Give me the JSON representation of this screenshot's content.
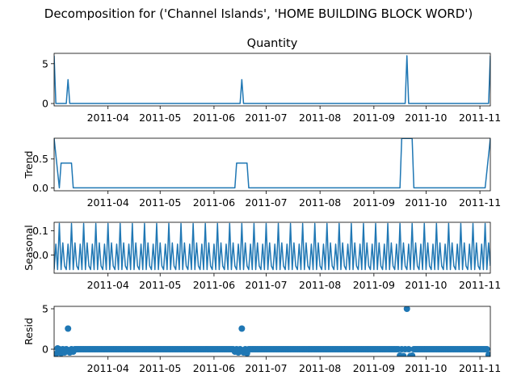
{
  "figure": {
    "suptitle": "Decomposition for ('Channel Islands', 'HOME BUILDING BLOCK WORD')"
  },
  "colors": {
    "series": "#1f77b4",
    "axis": "#000000",
    "background": "#ffffff"
  },
  "x_axis": {
    "type": "date",
    "range": [
      "2011-03-01",
      "2011-11-07"
    ],
    "ticks": [
      {
        "date": "2011-04-01",
        "label": "2011-04"
      },
      {
        "date": "2011-05-01",
        "label": "2011-05"
      },
      {
        "date": "2011-06-01",
        "label": "2011-06"
      },
      {
        "date": "2011-07-01",
        "label": "2011-07"
      },
      {
        "date": "2011-08-01",
        "label": "2011-08"
      },
      {
        "date": "2011-09-01",
        "label": "2011-09"
      },
      {
        "date": "2011-10-01",
        "label": "2011-10"
      },
      {
        "date": "2011-11-01",
        "label": "2011-11"
      }
    ]
  },
  "chart_data": [
    {
      "type": "line",
      "title": "Quantity",
      "ylabel": "",
      "ylim": [
        -0.3,
        6.3
      ],
      "yticks": [
        {
          "value": 0,
          "label": "0"
        },
        {
          "value": 5,
          "label": "5"
        }
      ],
      "sampling": {
        "start": "2011-03-01",
        "end": "2011-11-07",
        "step_days": 1,
        "baseline": 0
      },
      "points": [
        {
          "x": "2011-03-01",
          "y": 6
        },
        {
          "x": "2011-03-09",
          "y": 3
        },
        {
          "x": "2011-06-17",
          "y": 3
        },
        {
          "x": "2011-09-20",
          "y": 6
        },
        {
          "x": "2011-11-07",
          "y": 6
        }
      ]
    },
    {
      "type": "line",
      "title": "",
      "ylabel": "Trend",
      "ylim": [
        -0.05,
        0.86
      ],
      "yticks": [
        {
          "value": 0,
          "label": "0.0"
        },
        {
          "value": 0.5,
          "label": "0.5"
        }
      ],
      "steps": [
        {
          "x": "2011-03-01",
          "y": 0.857
        },
        {
          "x": "2011-03-04",
          "y": 0
        },
        {
          "x": "2011-03-05",
          "y": 0.429
        },
        {
          "x": "2011-03-11",
          "y": 0.429
        },
        {
          "x": "2011-03-12",
          "y": 0
        },
        {
          "x": "2011-06-13",
          "y": 0
        },
        {
          "x": "2011-06-14",
          "y": 0.429
        },
        {
          "x": "2011-06-20",
          "y": 0.429
        },
        {
          "x": "2011-06-21",
          "y": 0
        },
        {
          "x": "2011-09-16",
          "y": 0
        },
        {
          "x": "2011-09-17",
          "y": 0.857
        },
        {
          "x": "2011-09-23",
          "y": 0.857
        },
        {
          "x": "2011-09-24",
          "y": 0
        },
        {
          "x": "2011-11-04",
          "y": 0
        },
        {
          "x": "2011-11-07",
          "y": 0.857
        }
      ]
    },
    {
      "type": "line",
      "title": "",
      "ylabel": "Seasonal",
      "ylim": [
        -0.075,
        0.135
      ],
      "yticks": [
        {
          "value": 0,
          "label": "0.0"
        },
        {
          "value": 0.1,
          "label": "0.1"
        }
      ],
      "period_days": 7,
      "start": "2011-03-01",
      "end": "2011-11-07",
      "weekly_pattern": [
        -0.06,
        0.045,
        -0.06,
        0.13,
        -0.06,
        0.05,
        -0.045
      ]
    },
    {
      "type": "scatter",
      "title": "",
      "ylabel": "Resid",
      "ylim": [
        -0.9,
        5.3
      ],
      "yticks": [
        {
          "value": 0,
          "label": "0"
        },
        {
          "value": 5,
          "label": "5"
        }
      ],
      "sampling": {
        "start": "2011-03-01",
        "end": "2011-11-07",
        "step_days": 1,
        "baseline": 0
      },
      "points": [
        {
          "x": "2011-03-01",
          "y": -0.7
        },
        {
          "x": "2011-03-02",
          "y": -0.6
        },
        {
          "x": "2011-03-03",
          "y": 0.1
        },
        {
          "x": "2011-03-05",
          "y": -0.5
        },
        {
          "x": "2011-03-07",
          "y": -0.4
        },
        {
          "x": "2011-03-09",
          "y": 2.55
        },
        {
          "x": "2011-03-10",
          "y": -0.4
        },
        {
          "x": "2011-03-12",
          "y": -0.3
        },
        {
          "x": "2011-06-13",
          "y": -0.3
        },
        {
          "x": "2011-06-15",
          "y": -0.4
        },
        {
          "x": "2011-06-17",
          "y": 2.55
        },
        {
          "x": "2011-06-18",
          "y": -0.4
        },
        {
          "x": "2011-06-20",
          "y": -0.5
        },
        {
          "x": "2011-09-16",
          "y": -0.8
        },
        {
          "x": "2011-09-18",
          "y": -0.85
        },
        {
          "x": "2011-09-20",
          "y": 5.0
        },
        {
          "x": "2011-09-22",
          "y": -0.85
        },
        {
          "x": "2011-09-23",
          "y": -0.8
        },
        {
          "x": "2011-11-06",
          "y": -0.7
        },
        {
          "x": "2011-11-07",
          "y": -0.8
        }
      ]
    }
  ]
}
